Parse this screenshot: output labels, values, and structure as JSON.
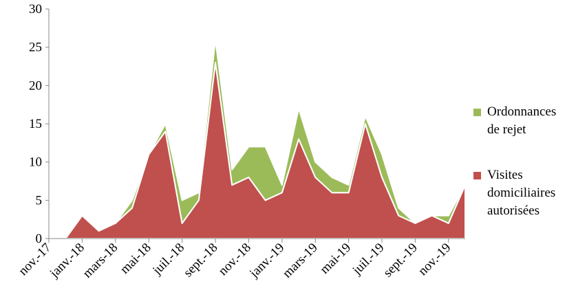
{
  "chart_data": {
    "type": "stacked-area",
    "categories": [
      "nov.-17",
      null,
      "janv.-18",
      null,
      "mars-18",
      null,
      "mai-18",
      null,
      "juil.-18",
      null,
      "sept.-18",
      null,
      "nov.-18",
      null,
      "janv.-19",
      null,
      "mars-19",
      null,
      "mai-19",
      null,
      "juil.-19",
      null,
      "sept.-19",
      null,
      "nov.-19",
      null
    ],
    "series": [
      {
        "name": "Visites domiciliaires autorisées",
        "color": "#c0504d",
        "values": [
          0,
          0,
          3,
          1,
          2,
          4,
          11,
          14,
          2,
          5,
          23,
          7,
          8,
          5,
          6,
          13,
          8,
          6,
          6,
          15,
          8,
          3,
          2,
          3,
          2,
          7
        ]
      },
      {
        "name": "Ordonnances de rejet",
        "color": "#9bbb59",
        "values": [
          0,
          0,
          0,
          0,
          0,
          1,
          0,
          1,
          3,
          1,
          3,
          2,
          4,
          7,
          1,
          4,
          2,
          2,
          1,
          1,
          3,
          1,
          0,
          0,
          1,
          0
        ]
      }
    ],
    "ylim": [
      0,
      30
    ],
    "yticks": [
      0,
      5,
      10,
      15,
      20,
      25,
      30
    ],
    "legend": "right"
  }
}
